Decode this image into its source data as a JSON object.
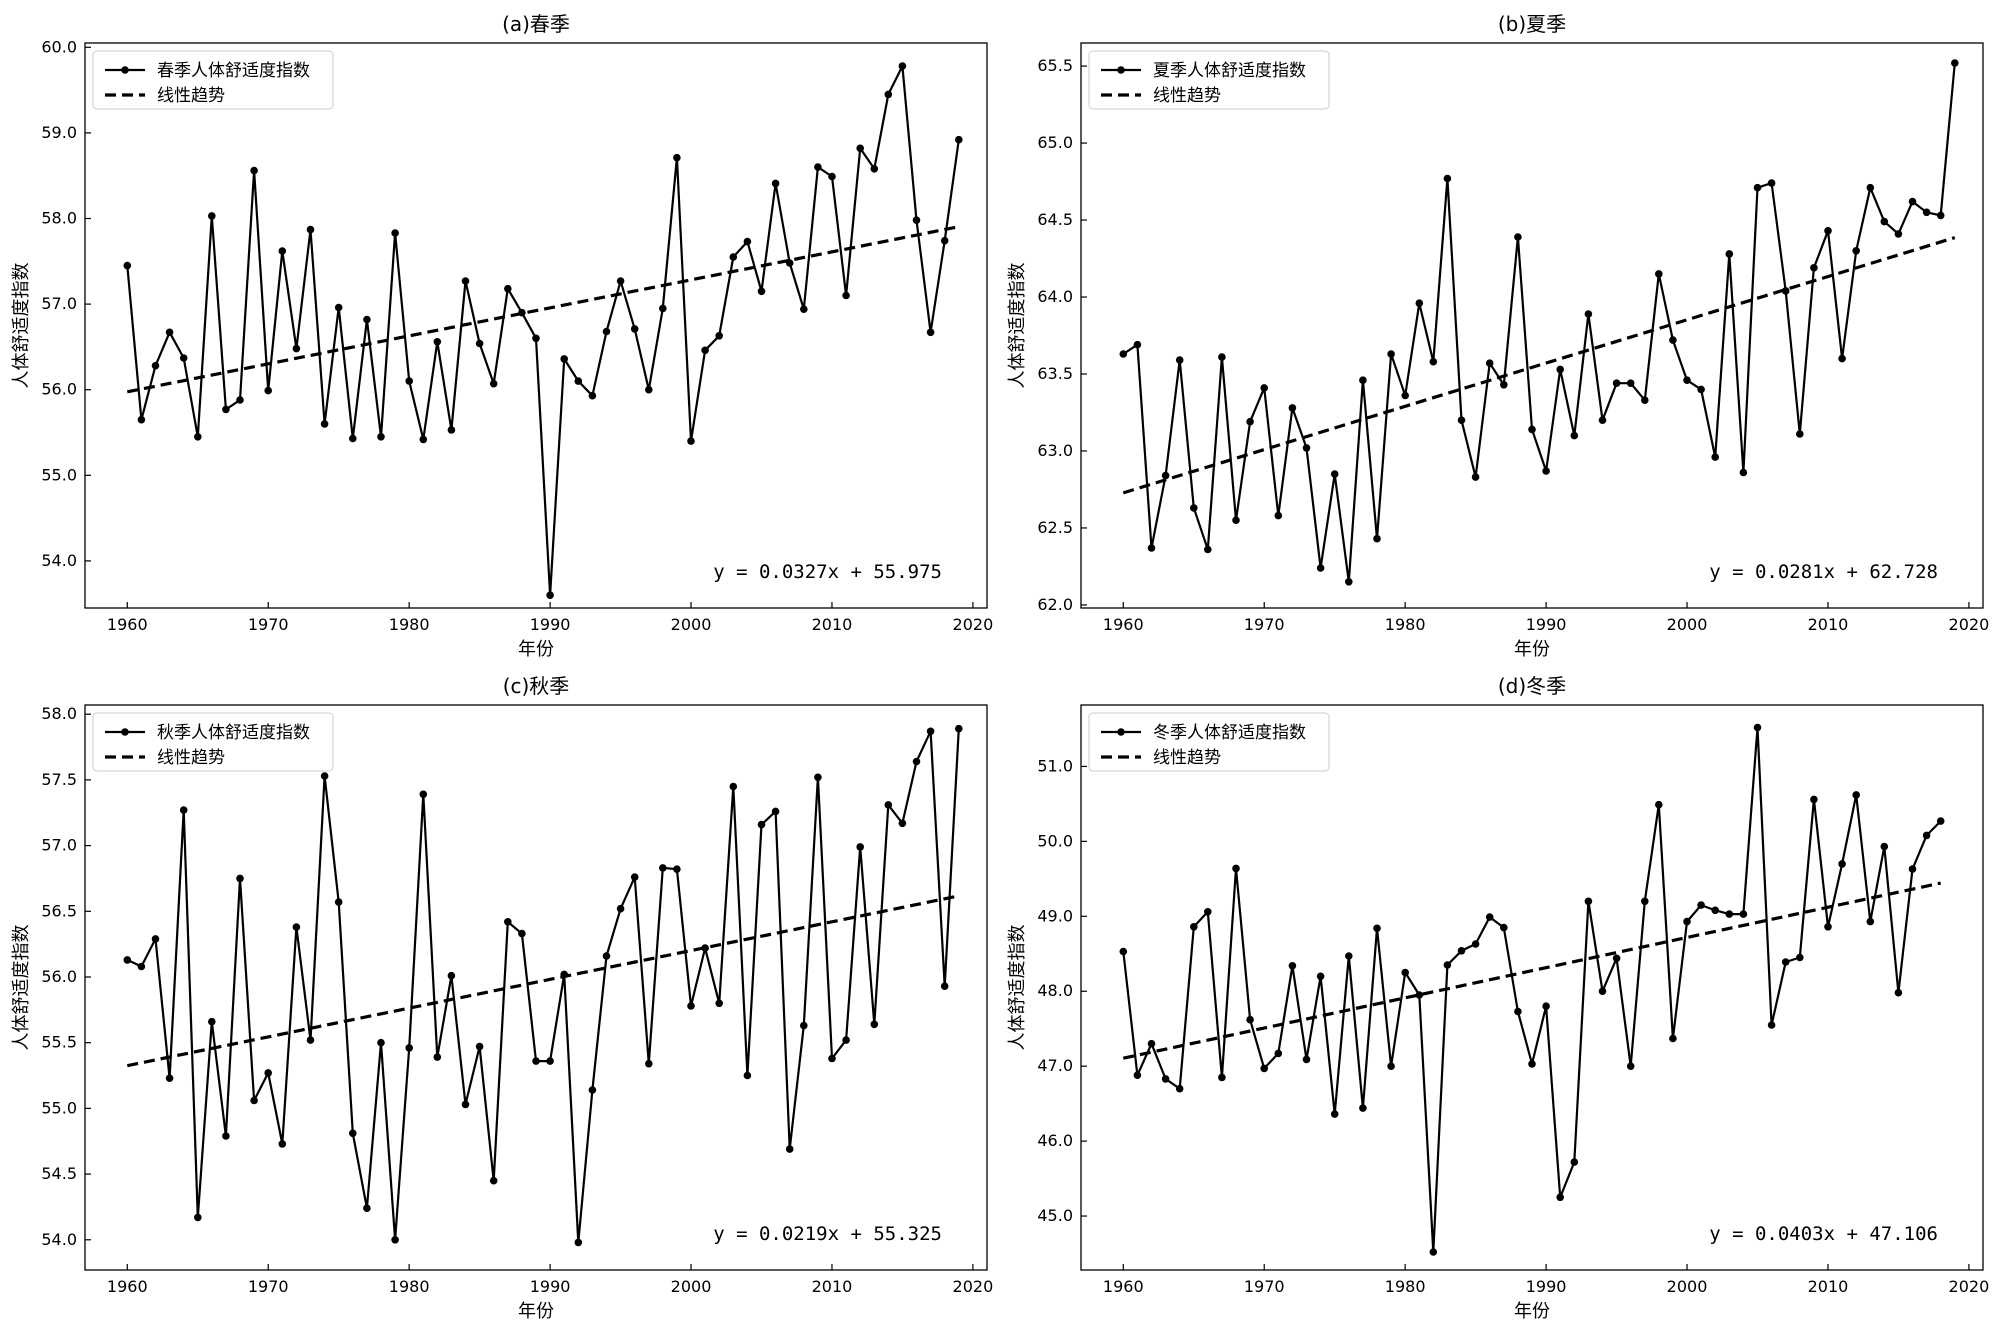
{
  "chart_data": [
    {
      "type": "line",
      "title": "(a)春季",
      "xlabel": "年份",
      "ylabel": "人体舒适度指数",
      "xlim": [
        1957,
        2021
      ],
      "ylim": [
        53.45,
        60.05
      ],
      "xticks": [
        1960,
        1970,
        1980,
        1990,
        2000,
        2010,
        2020
      ],
      "yticks": [
        54.0,
        55.0,
        56.0,
        57.0,
        58.0,
        59.0,
        60.0
      ],
      "legend": {
        "location": "top-left",
        "entries": [
          "春季人体舒适度指数",
          "线性趋势"
        ]
      },
      "equation": "y = 0.0327x + 55.975",
      "trend": {
        "slope": 0.0327,
        "intercept": 55.975
      },
      "series": [
        {
          "name": "春季人体舒适度指数",
          "x": [
            1960,
            1961,
            1962,
            1963,
            1964,
            1965,
            1966,
            1967,
            1968,
            1969,
            1970,
            1971,
            1972,
            1973,
            1974,
            1975,
            1976,
            1977,
            1978,
            1979,
            1980,
            1981,
            1982,
            1983,
            1984,
            1985,
            1986,
            1987,
            1988,
            1989,
            1990,
            1991,
            1992,
            1993,
            1994,
            1995,
            1996,
            1997,
            1998,
            1999,
            2000,
            2001,
            2002,
            2003,
            2004,
            2005,
            2006,
            2007,
            2008,
            2009,
            2010,
            2011,
            2012,
            2013,
            2014,
            2015,
            2016,
            2017,
            2018,
            2019
          ],
          "values": [
            57.45,
            55.65,
            56.28,
            56.67,
            56.37,
            55.45,
            58.03,
            55.77,
            55.88,
            58.56,
            55.99,
            57.62,
            56.48,
            57.87,
            55.6,
            56.96,
            55.43,
            56.82,
            55.45,
            57.83,
            56.1,
            55.42,
            56.56,
            55.53,
            57.27,
            56.54,
            56.07,
            57.18,
            56.9,
            56.6,
            53.6,
            56.36,
            56.1,
            55.93,
            56.68,
            57.27,
            56.71,
            56.0,
            56.95,
            58.71,
            55.4,
            56.46,
            56.63,
            57.55,
            57.73,
            57.15,
            58.41,
            57.48,
            56.94,
            58.6,
            58.49,
            57.1,
            58.82,
            58.58,
            59.45,
            59.78,
            57.98,
            56.67,
            57.74,
            58.92
          ]
        },
        {
          "name": "线性趋势",
          "style": "dashed"
        }
      ]
    },
    {
      "type": "line",
      "title": "(b)夏季",
      "xlabel": "年份",
      "ylabel": "人体舒适度指数",
      "xlim": [
        1957,
        2021
      ],
      "ylim": [
        61.98,
        65.65
      ],
      "xticks": [
        1960,
        1970,
        1980,
        1990,
        2000,
        2010,
        2020
      ],
      "yticks": [
        62.0,
        62.5,
        63.0,
        63.5,
        64.0,
        64.5,
        65.0,
        65.5
      ],
      "legend": {
        "location": "top-left",
        "entries": [
          "夏季人体舒适度指数",
          "线性趋势"
        ]
      },
      "equation": "y = 0.0281x + 62.728",
      "trend": {
        "slope": 0.0281,
        "intercept": 62.728
      },
      "series": [
        {
          "name": "夏季人体舒适度指数",
          "x": [
            1960,
            1961,
            1962,
            1963,
            1964,
            1965,
            1966,
            1967,
            1968,
            1969,
            1970,
            1971,
            1972,
            1973,
            1974,
            1975,
            1976,
            1977,
            1978,
            1979,
            1980,
            1981,
            1982,
            1983,
            1984,
            1985,
            1986,
            1987,
            1988,
            1989,
            1990,
            1991,
            1992,
            1993,
            1994,
            1995,
            1996,
            1997,
            1998,
            1999,
            2000,
            2001,
            2002,
            2003,
            2004,
            2005,
            2006,
            2007,
            2008,
            2009,
            2010,
            2011,
            2012,
            2013,
            2014,
            2015,
            2016,
            2017,
            2018,
            2019
          ],
          "values": [
            63.63,
            63.69,
            62.37,
            62.84,
            63.59,
            62.63,
            62.36,
            63.61,
            62.55,
            63.19,
            63.41,
            62.58,
            63.28,
            63.02,
            62.24,
            62.85,
            62.15,
            63.46,
            62.43,
            63.63,
            63.36,
            63.96,
            63.58,
            64.77,
            63.2,
            62.83,
            63.57,
            63.43,
            64.39,
            63.14,
            62.87,
            63.53,
            63.1,
            63.89,
            63.2,
            63.44,
            63.44,
            63.33,
            64.15,
            63.72,
            63.46,
            63.4,
            62.96,
            64.28,
            62.86,
            64.71,
            64.74,
            64.04,
            63.11,
            64.19,
            64.43,
            63.6,
            64.3,
            64.71,
            64.49,
            64.41,
            64.62,
            64.55,
            64.53,
            65.52
          ]
        },
        {
          "name": "线性趋势",
          "style": "dashed"
        }
      ]
    },
    {
      "type": "line",
      "title": "(c)秋季",
      "xlabel": "年份",
      "ylabel": "人体舒适度指数",
      "xlim": [
        1957,
        2021
      ],
      "ylim": [
        53.77,
        58.07
      ],
      "xticks": [
        1960,
        1970,
        1980,
        1990,
        2000,
        2010,
        2020
      ],
      "yticks": [
        54.0,
        54.5,
        55.0,
        55.5,
        56.0,
        56.5,
        57.0,
        57.5,
        58.0
      ],
      "legend": {
        "location": "top-left",
        "entries": [
          "秋季人体舒适度指数",
          "线性趋势"
        ]
      },
      "equation": "y = 0.0219x + 55.325",
      "trend": {
        "slope": 0.0219,
        "intercept": 55.325
      },
      "series": [
        {
          "name": "秋季人体舒适度指数",
          "x": [
            1960,
            1961,
            1962,
            1963,
            1964,
            1965,
            1966,
            1967,
            1968,
            1969,
            1970,
            1971,
            1972,
            1973,
            1974,
            1975,
            1976,
            1977,
            1978,
            1979,
            1980,
            1981,
            1982,
            1983,
            1984,
            1985,
            1986,
            1987,
            1988,
            1989,
            1990,
            1991,
            1992,
            1993,
            1994,
            1995,
            1996,
            1997,
            1998,
            1999,
            2000,
            2001,
            2002,
            2003,
            2004,
            2005,
            2006,
            2007,
            2008,
            2009,
            2010,
            2011,
            2012,
            2013,
            2014,
            2015,
            2016,
            2017,
            2018,
            2019
          ],
          "values": [
            56.13,
            56.08,
            56.29,
            55.23,
            57.27,
            54.17,
            55.66,
            54.79,
            56.75,
            55.06,
            55.27,
            54.73,
            56.38,
            55.52,
            57.53,
            56.57,
            54.81,
            54.24,
            55.5,
            54.0,
            55.46,
            57.39,
            55.39,
            56.01,
            55.03,
            55.47,
            54.45,
            56.42,
            56.33,
            55.36,
            55.36,
            56.02,
            53.98,
            55.14,
            56.16,
            56.52,
            56.76,
            55.34,
            56.83,
            56.82,
            55.78,
            56.22,
            55.8,
            57.45,
            55.25,
            57.16,
            57.26,
            54.69,
            55.63,
            57.52,
            55.38,
            55.52,
            56.99,
            55.64,
            57.31,
            57.17,
            57.64,
            57.87,
            55.93,
            57.89
          ]
        },
        {
          "name": "线性趋势",
          "style": "dashed"
        }
      ]
    },
    {
      "type": "line",
      "title": "(d)冬季",
      "xlabel": "年份",
      "ylabel": "人体舒适度指数",
      "xlim": [
        1957,
        2021
      ],
      "ylim": [
        44.28,
        51.82
      ],
      "xticks": [
        1960,
        1970,
        1980,
        1990,
        2000,
        2010,
        2020
      ],
      "yticks": [
        45.0,
        46.0,
        47.0,
        48.0,
        49.0,
        50.0,
        51.0
      ],
      "legend": {
        "location": "top-left",
        "entries": [
          "冬季人体舒适度指数",
          "线性趋势"
        ]
      },
      "equation": "y = 0.0403x + 47.106",
      "trend": {
        "slope": 0.0403,
        "intercept": 47.106
      },
      "series": [
        {
          "name": "冬季人体舒适度指数",
          "x": [
            1960,
            1961,
            1962,
            1963,
            1964,
            1965,
            1966,
            1967,
            1968,
            1969,
            1970,
            1971,
            1972,
            1973,
            1974,
            1975,
            1976,
            1977,
            1978,
            1979,
            1980,
            1981,
            1982,
            1983,
            1984,
            1985,
            1986,
            1987,
            1988,
            1989,
            1990,
            1991,
            1992,
            1993,
            1994,
            1995,
            1996,
            1997,
            1998,
            1999,
            2000,
            2001,
            2002,
            2003,
            2004,
            2005,
            2006,
            2007,
            2008,
            2009,
            2010,
            2011,
            2012,
            2013,
            2014,
            2015,
            2016,
            2017,
            2018
          ],
          "values": [
            48.53,
            46.88,
            47.3,
            46.83,
            46.7,
            48.86,
            49.06,
            46.85,
            49.64,
            47.62,
            46.97,
            47.17,
            48.34,
            47.09,
            48.2,
            46.36,
            48.47,
            46.44,
            48.84,
            47.0,
            48.25,
            47.95,
            44.52,
            48.35,
            48.54,
            48.63,
            48.99,
            48.85,
            47.73,
            47.03,
            47.8,
            45.25,
            45.72,
            49.2,
            48.0,
            48.44,
            47.0,
            49.2,
            50.49,
            47.37,
            48.93,
            49.15,
            49.08,
            49.03,
            49.03,
            51.52,
            47.55,
            48.39,
            48.45,
            50.56,
            48.86,
            49.7,
            50.62,
            48.93,
            49.93,
            47.98,
            49.63,
            50.08,
            50.27
          ]
        },
        {
          "name": "线性趋势",
          "style": "dashed"
        }
      ]
    }
  ]
}
